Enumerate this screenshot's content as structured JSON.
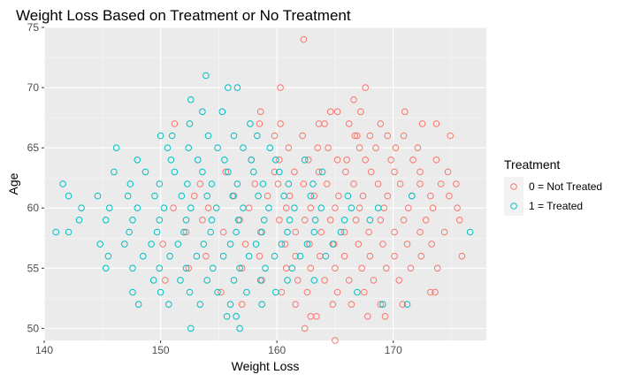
{
  "chart_data": {
    "type": "scatter",
    "title": "Weight Loss Based on Treatment or No Treatment",
    "xlabel": "Weight Loss",
    "ylabel": "Age",
    "xlim": [
      140,
      178
    ],
    "ylim": [
      49,
      75
    ],
    "x_ticks": [
      140,
      150,
      160,
      170
    ],
    "y_ticks": [
      50,
      55,
      60,
      65,
      70,
      75
    ],
    "grid": true,
    "legend": {
      "title": "Treatment",
      "placement": "right",
      "entries": [
        {
          "label": "0 = Not Treated",
          "color": "#F8766D"
        },
        {
          "label": "1 = Treated",
          "color": "#00BFC4"
        }
      ]
    },
    "series": [
      {
        "name": "0 = Not Treated",
        "color": "#F8766D",
        "points": [
          [
            162.3,
            74
          ],
          [
            160.3,
            70
          ],
          [
            167.6,
            70
          ],
          [
            166.6,
            69
          ],
          [
            164.6,
            68
          ],
          [
            165.2,
            68
          ],
          [
            167.2,
            68
          ],
          [
            158.6,
            68
          ],
          [
            171.0,
            68
          ],
          [
            160.3,
            67
          ],
          [
            158.5,
            67
          ],
          [
            163.6,
            67
          ],
          [
            164.1,
            67
          ],
          [
            166.2,
            67
          ],
          [
            168.9,
            67
          ],
          [
            172.5,
            67
          ],
          [
            173.7,
            67
          ],
          [
            151.2,
            67
          ],
          [
            162.2,
            66
          ],
          [
            166.7,
            66
          ],
          [
            166.9,
            66
          ],
          [
            168.0,
            66
          ],
          [
            169.5,
            66
          ],
          [
            170.9,
            66
          ],
          [
            174.9,
            66
          ],
          [
            159.8,
            66
          ],
          [
            163.5,
            65
          ],
          [
            161.0,
            65
          ],
          [
            164.4,
            65
          ],
          [
            167.1,
            65
          ],
          [
            168.5,
            65
          ],
          [
            170.2,
            65
          ],
          [
            172.1,
            65
          ],
          [
            160.2,
            64
          ],
          [
            162.7,
            64
          ],
          [
            165.2,
            64
          ],
          [
            167.6,
            64
          ],
          [
            169.8,
            64
          ],
          [
            171.7,
            64
          ],
          [
            173.7,
            64
          ],
          [
            157.8,
            64
          ],
          [
            166.0,
            64
          ],
          [
            161.5,
            63
          ],
          [
            163.6,
            63
          ],
          [
            165.9,
            63
          ],
          [
            168.1,
            63
          ],
          [
            170.1,
            63
          ],
          [
            172.3,
            63
          ],
          [
            174.7,
            63
          ],
          [
            159.8,
            63
          ],
          [
            155.6,
            63
          ],
          [
            160.1,
            62
          ],
          [
            162.3,
            62
          ],
          [
            164.3,
            62
          ],
          [
            166.6,
            62
          ],
          [
            168.7,
            62
          ],
          [
            170.6,
            62
          ],
          [
            172.3,
            62
          ],
          [
            174.1,
            62
          ],
          [
            175.4,
            62
          ],
          [
            158.1,
            62
          ],
          [
            153.4,
            62
          ],
          [
            161.1,
            61
          ],
          [
            163.2,
            61
          ],
          [
            165.3,
            61
          ],
          [
            167.4,
            61
          ],
          [
            169.5,
            61
          ],
          [
            171.6,
            61
          ],
          [
            173.2,
            61
          ],
          [
            174.8,
            61
          ],
          [
            156.3,
            61
          ],
          [
            159.2,
            61
          ],
          [
            152.9,
            61
          ],
          [
            160.8,
            60
          ],
          [
            162.9,
            60
          ],
          [
            165.0,
            60
          ],
          [
            167.1,
            60
          ],
          [
            169.2,
            60
          ],
          [
            171.3,
            60
          ],
          [
            173.4,
            60
          ],
          [
            175.5,
            60
          ],
          [
            157.6,
            60
          ],
          [
            154.1,
            60
          ],
          [
            151.1,
            60
          ],
          [
            160.2,
            59
          ],
          [
            162.4,
            59
          ],
          [
            164.6,
            59
          ],
          [
            166.8,
            59
          ],
          [
            168.9,
            59
          ],
          [
            170.9,
            59
          ],
          [
            172.8,
            59
          ],
          [
            175.7,
            59
          ],
          [
            156.8,
            59
          ],
          [
            153.6,
            59
          ],
          [
            161.6,
            58
          ],
          [
            163.8,
            58
          ],
          [
            165.8,
            58
          ],
          [
            167.9,
            58
          ],
          [
            170.1,
            58
          ],
          [
            172.3,
            58
          ],
          [
            174.4,
            58
          ],
          [
            158.6,
            58
          ],
          [
            155.4,
            58
          ],
          [
            152.2,
            58
          ],
          [
            160.7,
            57
          ],
          [
            162.8,
            57
          ],
          [
            164.9,
            57
          ],
          [
            167.0,
            57
          ],
          [
            169.1,
            57
          ],
          [
            171.2,
            57
          ],
          [
            173.3,
            57
          ],
          [
            157.3,
            57
          ],
          [
            150.2,
            57
          ],
          [
            161.6,
            56
          ],
          [
            163.7,
            56
          ],
          [
            165.8,
            56
          ],
          [
            168.0,
            56
          ],
          [
            170.1,
            56
          ],
          [
            172.4,
            56
          ],
          [
            175.9,
            56
          ],
          [
            158.5,
            56
          ],
          [
            153.9,
            56
          ],
          [
            160.8,
            55
          ],
          [
            162.9,
            55
          ],
          [
            165.0,
            55
          ],
          [
            167.3,
            55
          ],
          [
            169.4,
            55
          ],
          [
            171.5,
            55
          ],
          [
            173.8,
            55
          ],
          [
            157.0,
            55
          ],
          [
            152.4,
            55
          ],
          [
            161.8,
            54
          ],
          [
            164.1,
            54
          ],
          [
            166.2,
            54
          ],
          [
            168.3,
            54
          ],
          [
            170.5,
            54
          ],
          [
            158.7,
            54
          ],
          [
            150.4,
            54
          ],
          [
            160.4,
            53
          ],
          [
            162.6,
            53
          ],
          [
            165.2,
            53
          ],
          [
            167.5,
            53
          ],
          [
            173.2,
            53
          ],
          [
            173.6,
            53
          ],
          [
            155.2,
            53
          ],
          [
            161.6,
            52
          ],
          [
            164.8,
            52
          ],
          [
            166.4,
            52
          ],
          [
            170.8,
            52
          ],
          [
            168.9,
            52
          ],
          [
            157.0,
            52
          ],
          [
            163.4,
            51
          ],
          [
            167.8,
            51
          ],
          [
            162.9,
            51
          ],
          [
            169.3,
            51
          ],
          [
            162.4,
            50
          ],
          [
            165.0,
            49
          ]
        ]
      },
      {
        "name": "1 = Treated",
        "color": "#00BFC4",
        "points": [
          [
            153.9,
            71
          ],
          [
            155.8,
            70
          ],
          [
            156.6,
            70
          ],
          [
            152.6,
            69
          ],
          [
            153.6,
            68
          ],
          [
            155.3,
            68
          ],
          [
            157.7,
            67
          ],
          [
            152.5,
            67
          ],
          [
            150.0,
            66
          ],
          [
            154.1,
            66
          ],
          [
            156.3,
            66
          ],
          [
            158.3,
            66
          ],
          [
            151.0,
            66
          ],
          [
            146.2,
            65
          ],
          [
            152.4,
            65
          ],
          [
            154.9,
            65
          ],
          [
            157.1,
            65
          ],
          [
            159.4,
            65
          ],
          [
            150.6,
            65
          ],
          [
            148.0,
            64
          ],
          [
            150.9,
            64
          ],
          [
            153.2,
            64
          ],
          [
            155.5,
            64
          ],
          [
            157.8,
            64
          ],
          [
            159.9,
            64
          ],
          [
            162.4,
            64
          ],
          [
            146.0,
            63
          ],
          [
            148.7,
            63
          ],
          [
            151.2,
            63
          ],
          [
            153.6,
            63
          ],
          [
            155.8,
            63
          ],
          [
            158.0,
            63
          ],
          [
            160.2,
            63
          ],
          [
            163.9,
            63
          ],
          [
            141.6,
            62
          ],
          [
            147.4,
            62
          ],
          [
            149.9,
            62
          ],
          [
            152.3,
            62
          ],
          [
            154.4,
            62
          ],
          [
            156.6,
            62
          ],
          [
            158.8,
            62
          ],
          [
            161.0,
            62
          ],
          [
            163.1,
            62
          ],
          [
            142.1,
            61
          ],
          [
            144.6,
            61
          ],
          [
            147.2,
            61
          ],
          [
            149.5,
            61
          ],
          [
            151.8,
            61
          ],
          [
            154.0,
            61
          ],
          [
            156.2,
            61
          ],
          [
            158.4,
            61
          ],
          [
            160.6,
            61
          ],
          [
            162.9,
            61
          ],
          [
            166.1,
            61
          ],
          [
            171.6,
            61
          ],
          [
            143.2,
            60
          ],
          [
            145.6,
            60
          ],
          [
            148.0,
            60
          ],
          [
            150.3,
            60
          ],
          [
            152.6,
            60
          ],
          [
            154.8,
            60
          ],
          [
            157.1,
            60
          ],
          [
            159.3,
            60
          ],
          [
            161.5,
            60
          ],
          [
            163.8,
            60
          ],
          [
            166.4,
            60
          ],
          [
            168.7,
            60
          ],
          [
            143.0,
            59
          ],
          [
            145.3,
            59
          ],
          [
            147.6,
            59
          ],
          [
            149.9,
            59
          ],
          [
            152.2,
            59
          ],
          [
            154.4,
            59
          ],
          [
            156.7,
            59
          ],
          [
            158.9,
            59
          ],
          [
            161.1,
            59
          ],
          [
            163.3,
            59
          ],
          [
            165.8,
            59
          ],
          [
            168.0,
            59
          ],
          [
            141.0,
            58
          ],
          [
            142.1,
            58
          ],
          [
            147.3,
            58
          ],
          [
            149.7,
            58
          ],
          [
            152.0,
            58
          ],
          [
            154.3,
            58
          ],
          [
            156.5,
            58
          ],
          [
            158.7,
            58
          ],
          [
            160.9,
            58
          ],
          [
            163.2,
            58
          ],
          [
            165.5,
            58
          ],
          [
            176.6,
            58
          ],
          [
            144.8,
            57
          ],
          [
            146.9,
            57
          ],
          [
            149.2,
            57
          ],
          [
            151.5,
            57
          ],
          [
            153.7,
            57
          ],
          [
            156.0,
            57
          ],
          [
            158.2,
            57
          ],
          [
            160.4,
            57
          ],
          [
            162.6,
            57
          ],
          [
            164.8,
            57
          ],
          [
            145.5,
            56
          ],
          [
            148.5,
            56
          ],
          [
            150.8,
            56
          ],
          [
            153.1,
            56
          ],
          [
            155.4,
            56
          ],
          [
            157.6,
            56
          ],
          [
            159.8,
            56
          ],
          [
            162.0,
            56
          ],
          [
            164.2,
            56
          ],
          [
            145.3,
            55
          ],
          [
            147.6,
            55
          ],
          [
            149.9,
            55
          ],
          [
            152.2,
            55
          ],
          [
            154.5,
            55
          ],
          [
            156.8,
            55
          ],
          [
            159.0,
            55
          ],
          [
            161.3,
            55
          ],
          [
            149.4,
            54
          ],
          [
            151.7,
            54
          ],
          [
            154.0,
            54
          ],
          [
            156.3,
            54
          ],
          [
            158.6,
            54
          ],
          [
            160.9,
            54
          ],
          [
            163.2,
            54
          ],
          [
            147.6,
            53
          ],
          [
            150.0,
            53
          ],
          [
            152.5,
            53
          ],
          [
            154.9,
            53
          ],
          [
            157.4,
            53
          ],
          [
            159.9,
            53
          ],
          [
            166.9,
            53
          ],
          [
            148.1,
            52
          ],
          [
            150.7,
            52
          ],
          [
            153.4,
            52
          ],
          [
            156.0,
            52
          ],
          [
            158.7,
            52
          ],
          [
            169.1,
            52
          ],
          [
            171.2,
            52
          ],
          [
            155.7,
            51
          ],
          [
            156.5,
            51
          ],
          [
            152.6,
            50
          ],
          [
            156.8,
            50
          ]
        ]
      }
    ]
  }
}
